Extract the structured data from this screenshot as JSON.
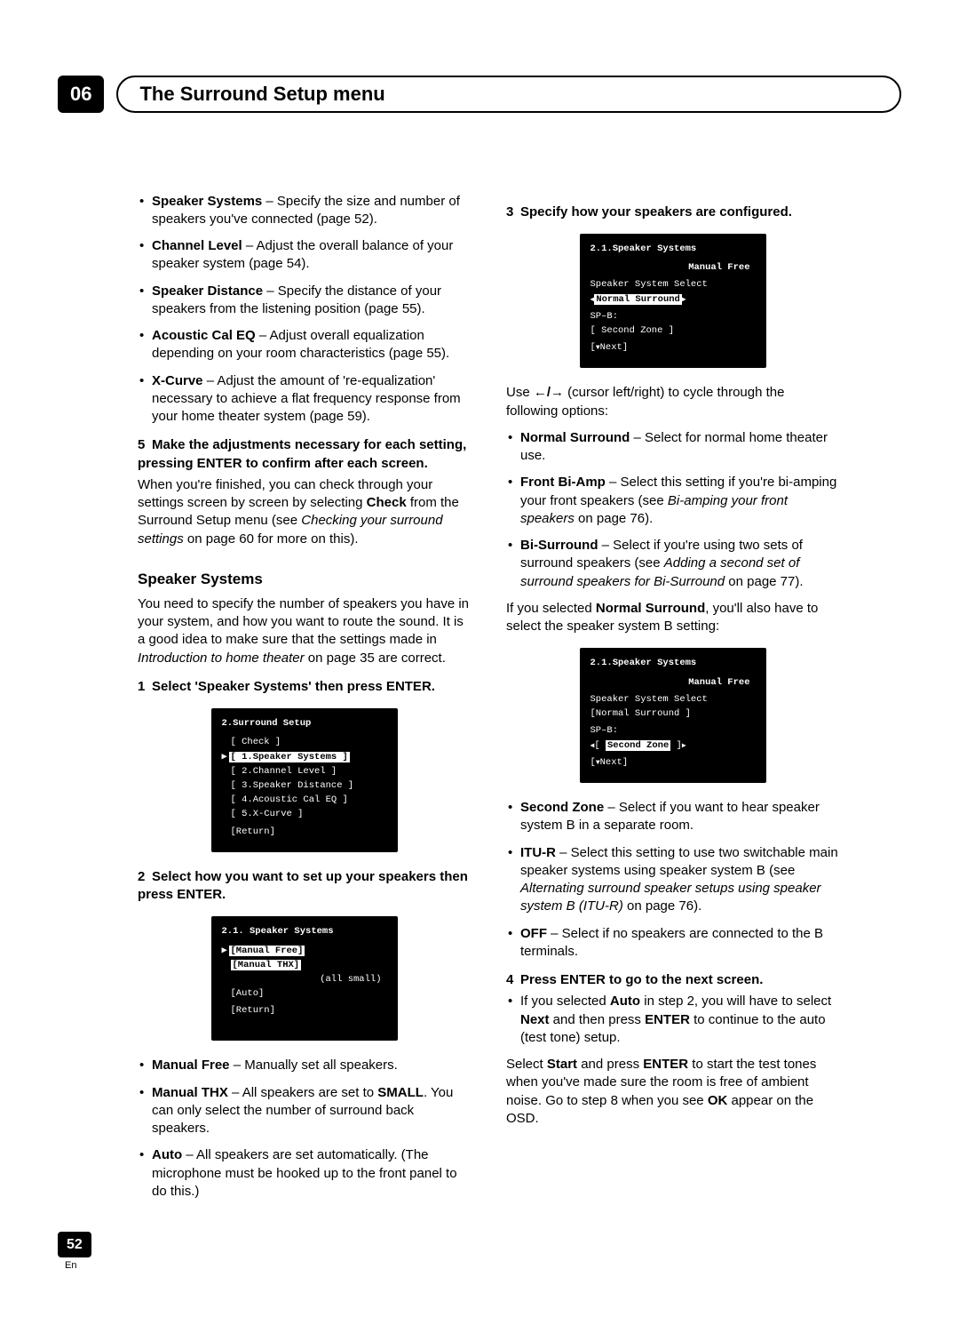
{
  "chapter": {
    "number": "06",
    "title": "The Surround Setup menu"
  },
  "page": {
    "number": "52",
    "lang": "En"
  },
  "left": {
    "settings": [
      {
        "name": "Speaker Systems",
        "desc": " – Specify the size and number of speakers you've connected (page 52)."
      },
      {
        "name": "Channel Level",
        "desc": " – Adjust the overall balance of your speaker system (page 54)."
      },
      {
        "name": "Speaker Distance",
        "desc": " – Specify the distance of your speakers from the listening position (page 55)."
      },
      {
        "name": "Acoustic Cal EQ",
        "desc": " – Adjust overall equalization depending on your room characteristics (page 55)."
      },
      {
        "name": "X-Curve",
        "desc": " – Adjust the amount of 're-equalization' necessary to achieve a flat frequency response from your home theater system (page 59)."
      }
    ],
    "step5": {
      "num": "5",
      "heading": "Make the adjustments necessary for each setting, pressing ENTER to confirm after each screen.",
      "body_a": "When you're finished, you can check through your settings screen by screen by selecting ",
      "check": "Check",
      "body_b": " from the Surround Setup menu (see ",
      "italic": "Checking your surround settings",
      "body_c": " on page 60 for more on this)."
    },
    "speaker_systems": {
      "title": "Speaker Systems",
      "intro_a": "You need to specify the number of speakers you have in your system, and how you want to route the sound. It is a good idea to make sure that the settings made in ",
      "intro_italic": "Introduction to home theater",
      "intro_b": " on page 35 are correct."
    },
    "step1": {
      "num": "1",
      "heading": "Select 'Speaker Systems' then press ENTER."
    },
    "osd1": {
      "title": "2.Surround Setup",
      "lines": [
        "[ Check ]",
        "[ 1.Speaker Systems ]",
        "[ 2.Channel Level ]",
        "[ 3.Speaker Distance ]",
        "[ 4.Acoustic Cal EQ ]",
        "[ 5.X-Curve ]",
        "[Return]"
      ],
      "selected_index": 1
    },
    "step2": {
      "num": "2",
      "heading": "Select how you want to set up your speakers then press ENTER."
    },
    "osd2": {
      "title": "2.1. Speaker  Systems",
      "lines": [
        "[Manual  Free]",
        "[Manual  THX]",
        "(all  small)",
        "[Auto]",
        "[Return]"
      ],
      "selected_index": 0
    },
    "modes": [
      {
        "name": "Manual Free",
        "desc": " – Manually set all speakers."
      },
      {
        "name": "Manual THX",
        "desc_a": " – All speakers are set to ",
        "bold": "SMALL",
        "desc_b": ". You can only select the number of surround back speakers."
      },
      {
        "name": "Auto",
        "desc": " – All speakers are set automatically. (The microphone must be hooked up to the front panel to do this.)"
      }
    ]
  },
  "right": {
    "step3": {
      "num": "3",
      "heading": "Specify how your speakers are configured."
    },
    "osd3": {
      "title": "2.1.Speaker Systems",
      "sub": "Manual Free",
      "select_label": "Speaker System Select",
      "sel_line": "Normal Surround",
      "spb_label": "SP–B:",
      "spb_value": "[   Second Zone   ]",
      "next": "Next]"
    },
    "use_line_a": "Use ",
    "use_line_b": " (cursor left/right) to cycle through the following options:",
    "arrows": "←/→",
    "opts1": [
      {
        "name": "Normal Surround",
        "desc": " – Select for normal home theater use."
      },
      {
        "name": "Front Bi-Amp",
        "desc_a": " – Select this setting if you're bi-amping your front speakers (see ",
        "italic": "Bi-amping your front speakers",
        "desc_b": " on page 76)."
      },
      {
        "name": "Bi-Surround",
        "desc_a": " – Select if you're using two sets of surround speakers (see ",
        "italic": "Adding a second set of surround speakers for Bi-Surround",
        "desc_b": " on page 77)."
      }
    ],
    "if_selected_a": "If you selected ",
    "if_selected_bold": "Normal Surround",
    "if_selected_b": ", you'll also have to select the speaker system B setting:",
    "osd4": {
      "title": "2.1.Speaker Systems",
      "sub": "Manual Free",
      "select_label": "Speaker System Select",
      "top_line": "[Normal Surround ]",
      "spb_label": "SP–B:",
      "spb_value": "Second Zone",
      "next": "Next]"
    },
    "opts2": [
      {
        "name": "Second Zone",
        "desc": " – Select if you want to hear speaker system B in a separate room."
      },
      {
        "name": "ITU-R",
        "desc_a": " – Select this setting to use two switchable main speaker systems using speaker system B (see ",
        "italic": "Alternating surround speaker setups using speaker system B (ITU-R)",
        "desc_b": " on page 76)."
      },
      {
        "name": "OFF",
        "desc": " – Select if no speakers are connected to the B terminals."
      }
    ],
    "step4": {
      "num": "4",
      "heading": "Press ENTER to go to the next screen.",
      "bullet_a": "If you selected ",
      "bullet_bold1": "Auto",
      "bullet_b": " in step 2, you will have to select ",
      "bullet_bold2": "Next",
      "bullet_c": " and then press ",
      "bullet_bold3": "ENTER",
      "bullet_d": " to continue to the auto (test tone) setup."
    },
    "final_a": "Select ",
    "final_bold1": "Start",
    "final_b": " and press ",
    "final_bold2": "ENTER",
    "final_c": " to start the test tones when you've made sure the room is free of ambient noise. Go to step 8 when you see ",
    "final_bold3": "OK",
    "final_d": " appear on the OSD."
  }
}
